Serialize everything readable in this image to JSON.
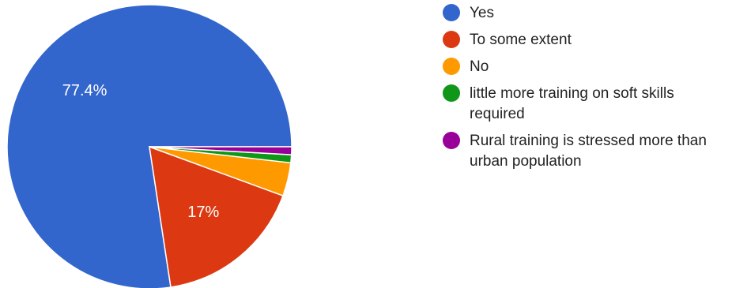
{
  "chart_data": {
    "type": "pie",
    "title": "",
    "slices": [
      {
        "label": "Yes",
        "value": 77.4,
        "color": "#3366cc",
        "data_label": "77.4%"
      },
      {
        "label": "To some extent",
        "value": 17.0,
        "color": "#dc3912",
        "data_label": "17%"
      },
      {
        "label": "No",
        "value": 3.8,
        "color": "#ff9900",
        "data_label": ""
      },
      {
        "label": "little more training on soft skills required",
        "value": 0.9,
        "color": "#109618",
        "data_label": ""
      },
      {
        "label": "Rural training is stressed more than urban population",
        "value": 0.9,
        "color": "#990099",
        "data_label": ""
      }
    ],
    "start_angle": "3 o'clock, counter-clockwise",
    "legend_position": "right"
  }
}
